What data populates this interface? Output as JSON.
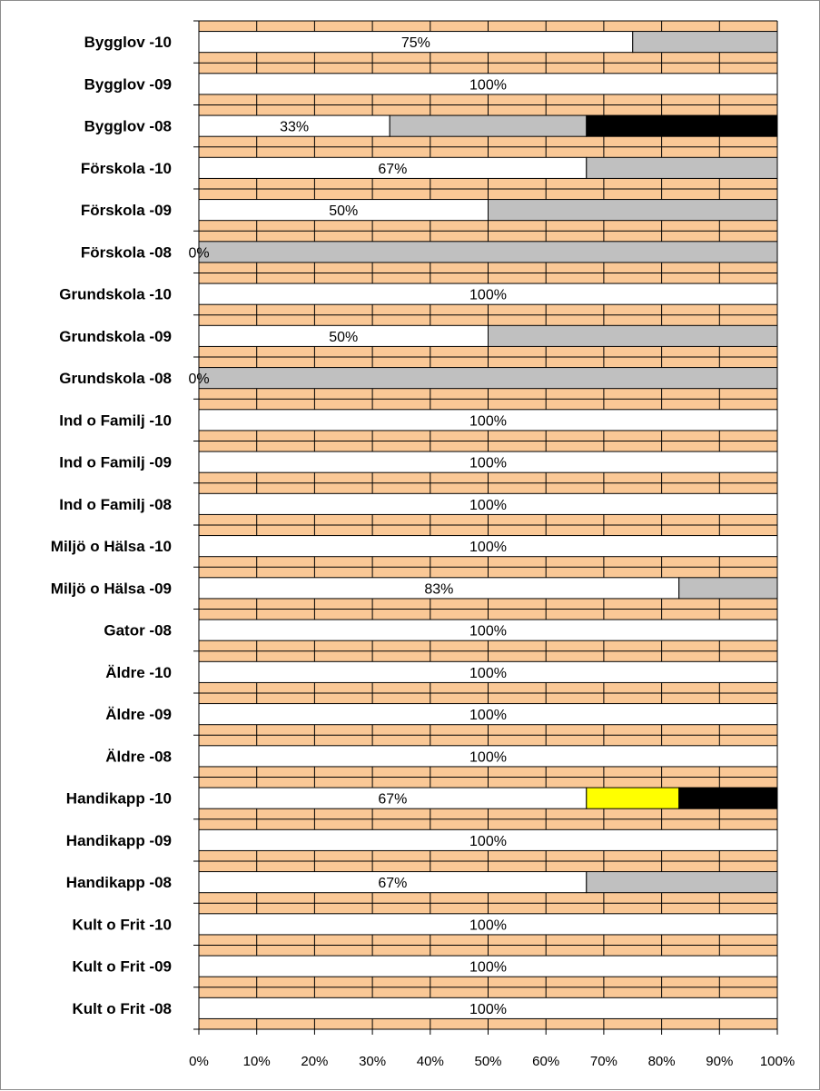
{
  "chart_data": {
    "type": "bar",
    "orientation": "horizontal",
    "stacked": true,
    "categories": [
      "Bygglov -10",
      "Bygglov -09",
      "Bygglov -08",
      "Förskola -10",
      "Förskola -09",
      "Förskola -08",
      "Grundskola -10",
      "Grundskola -09",
      "Grundskola -08",
      "Ind o Familj -10",
      "Ind o Familj -09",
      "Ind o Familj -08",
      "Miljö o Hälsa -10",
      "Miljö o Hälsa -09",
      "Gator -08",
      "Äldre -10",
      "Äldre -09",
      "Äldre -08",
      "Handikapp -10",
      "Handikapp -09",
      "Handikapp -08",
      "Kult o Frit -10",
      "Kult o Frit -09",
      "Kult o Frit -08"
    ],
    "series": [
      {
        "color": "#ffffff",
        "values": [
          75,
          100,
          33,
          67,
          50,
          0,
          100,
          50,
          0,
          100,
          100,
          100,
          100,
          83,
          100,
          100,
          100,
          100,
          67,
          100,
          67,
          100,
          100,
          100
        ]
      },
      {
        "color": "#ffff00",
        "values": [
          0,
          0,
          0,
          0,
          0,
          0,
          0,
          0,
          0,
          0,
          0,
          0,
          0,
          0,
          0,
          0,
          0,
          0,
          16,
          0,
          0,
          0,
          0,
          0
        ]
      },
      {
        "color": "#c0c0c0",
        "values": [
          25,
          0,
          34,
          33,
          50,
          100,
          0,
          50,
          100,
          0,
          0,
          0,
          0,
          17,
          0,
          0,
          0,
          0,
          0,
          0,
          33,
          0,
          0,
          0
        ]
      },
      {
        "color": "#000000",
        "values": [
          0,
          0,
          33,
          0,
          0,
          0,
          0,
          0,
          0,
          0,
          0,
          0,
          0,
          0,
          0,
          0,
          0,
          0,
          17,
          0,
          0,
          0,
          0,
          0
        ]
      }
    ],
    "data_labels": [
      "75%",
      "100%",
      "33%",
      "67%",
      "50%",
      "0%",
      "100%",
      "50%",
      "0%",
      "100%",
      "100%",
      "100%",
      "100%",
      "83%",
      "100%",
      "100%",
      "100%",
      "100%",
      "67%",
      "100%",
      "67%",
      "100%",
      "100%",
      "100%"
    ],
    "x_ticks": [
      "0%",
      "10%",
      "20%",
      "30%",
      "40%",
      "50%",
      "60%",
      "70%",
      "80%",
      "90%",
      "100%"
    ],
    "xlim": [
      0,
      100
    ],
    "title": "",
    "xlabel": "",
    "ylabel": "",
    "plot_background": "#fac896",
    "grid": true,
    "legend": "none"
  }
}
